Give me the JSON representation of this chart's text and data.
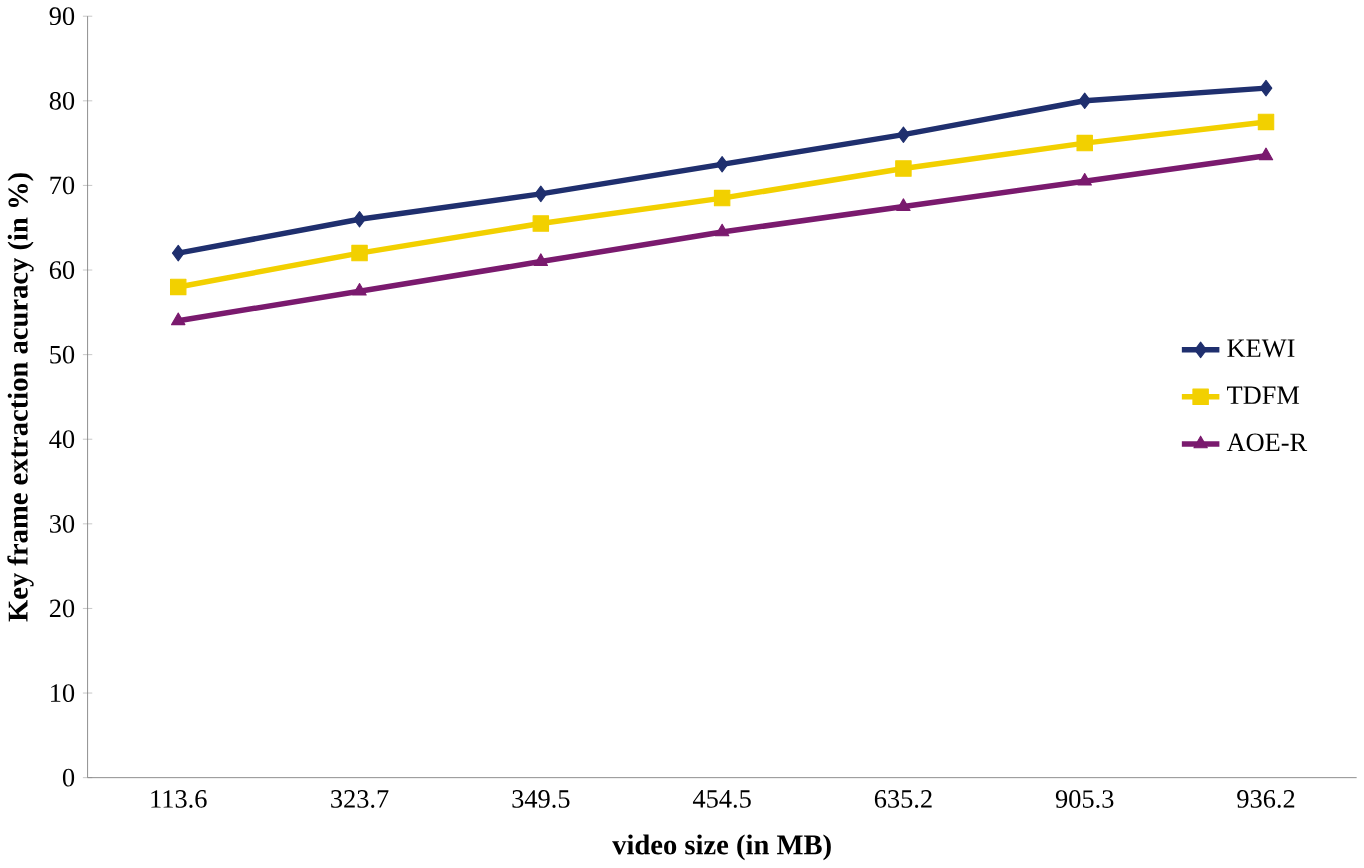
{
  "chart_data": {
    "type": "line",
    "xlabel": "video size (in MB)",
    "ylabel": "Key frame extraction acuracy (in %)",
    "categories": [
      "113.6",
      "323.7",
      "349.5",
      "454.5",
      "635.2",
      "905.3",
      "936.2"
    ],
    "ylim": [
      0,
      90
    ],
    "yticks": [
      0,
      10,
      20,
      30,
      40,
      50,
      60,
      70,
      80,
      90
    ],
    "grid": false,
    "legend": "right",
    "line_style": "solid",
    "series": [
      {
        "name": "KEWI",
        "color": "#1f2f6e",
        "marker": "diamond",
        "values": [
          62,
          66,
          69,
          72.5,
          76,
          80,
          81.5
        ]
      },
      {
        "name": "TDFM",
        "color": "#f2d000",
        "marker": "square",
        "values": [
          58,
          62,
          65.5,
          68.5,
          72,
          75,
          77.5
        ]
      },
      {
        "name": "AOE-R",
        "color": "#7a1a6e",
        "marker": "triangle",
        "values": [
          54,
          57.5,
          61,
          64.5,
          67.5,
          70.5,
          73.5
        ]
      }
    ]
  }
}
